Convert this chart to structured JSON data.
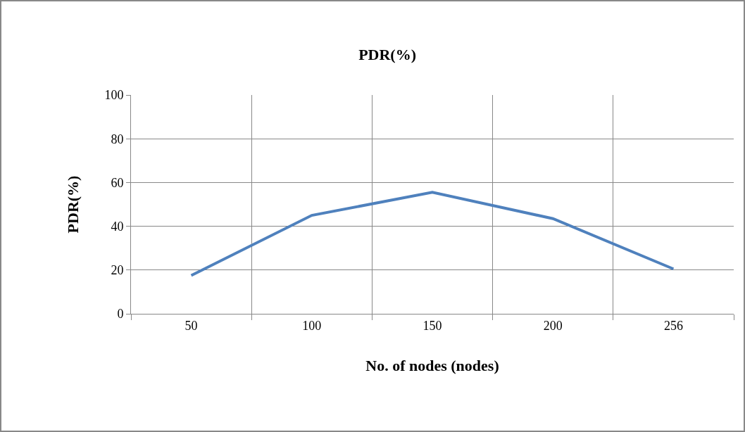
{
  "chart_data": {
    "type": "line",
    "title": "PDR(%)",
    "xlabel": "No. of nodes (nodes)",
    "ylabel": "PDR(%)",
    "categories": [
      "50",
      "100",
      "150",
      "200",
      "256"
    ],
    "series": [
      {
        "color": "#4f81bd",
        "values": [
          17.5,
          45,
          55.5,
          43.5,
          20.5
        ]
      }
    ],
    "ylim": [
      0,
      100
    ],
    "yticks": [
      0,
      20,
      40,
      60,
      80,
      100
    ],
    "grid": true,
    "marker": "none",
    "line_style": "solid"
  }
}
